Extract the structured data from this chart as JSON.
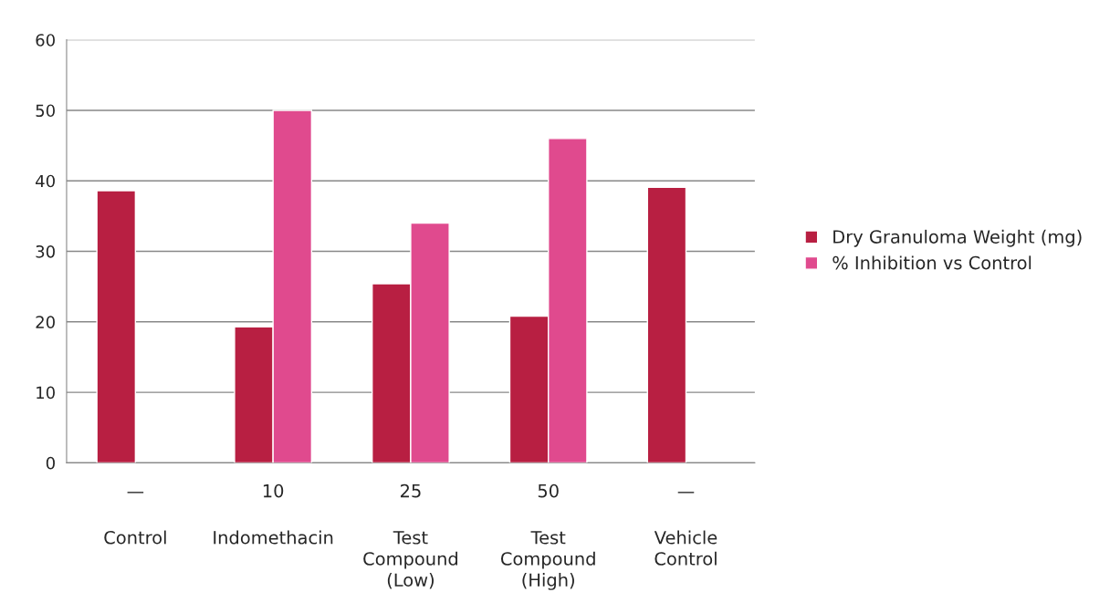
{
  "chart_data": {
    "type": "bar",
    "categories": [
      "—\nControl",
      "10\nIndomethacin",
      "25\nTest\nCompound\n(Low)",
      "50\nTest\nCompound\n(High)",
      "—\nVehicle\nControl"
    ],
    "series": [
      {
        "name": "Dry Granuloma Weight (mg)",
        "color": "#b81f42",
        "values": [
          38.6,
          19.3,
          25.4,
          20.8,
          39.1
        ]
      },
      {
        "name": "% Inhibition vs Control",
        "color": "#e04a8e",
        "values": [
          null,
          50,
          34,
          46,
          null
        ]
      }
    ],
    "ylim": [
      0,
      60
    ],
    "yticks": [
      0,
      10,
      20,
      30,
      40,
      50,
      60
    ],
    "grid": "y",
    "legend": "right"
  }
}
